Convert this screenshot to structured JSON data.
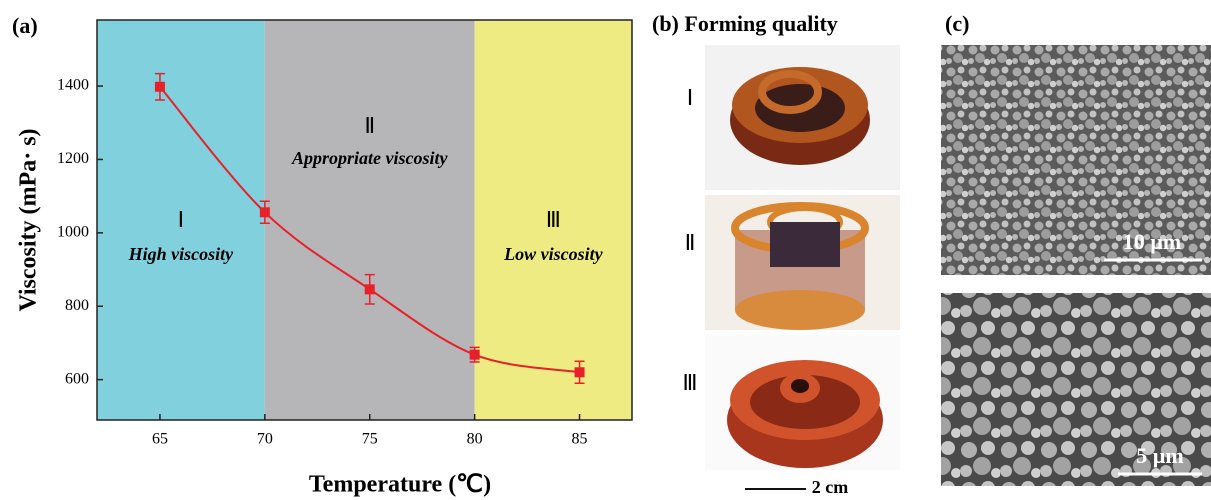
{
  "chart_data": {
    "type": "line",
    "panel_label": "(a)",
    "xlabel": "Temperature (℃)",
    "ylabel": "Viscosity (mPa· s)",
    "x": [
      65,
      70,
      75,
      80,
      85
    ],
    "values": [
      1398,
      1056,
      846,
      668,
      620
    ],
    "errors": [
      36,
      30,
      40,
      20,
      30
    ],
    "color": "#e8202a",
    "xlim": [
      62,
      87.5
    ],
    "xticks": [
      65,
      70,
      75,
      80,
      85
    ],
    "ylim": [
      490,
      1580
    ],
    "yticks": [
      600,
      800,
      1000,
      1200,
      1400
    ],
    "regions": [
      {
        "range": [
          62,
          70
        ],
        "color": "#80d0de",
        "numeral": "Ⅰ",
        "label": "High viscosity"
      },
      {
        "range": [
          70,
          80
        ],
        "color": "#b6b6b9",
        "numeral": "Ⅱ",
        "label": "Appropriate viscosity"
      },
      {
        "range": [
          80,
          87.5
        ],
        "color": "#eeeb82",
        "numeral": "Ⅲ",
        "label": "Low viscosity"
      }
    ]
  },
  "panel_b": {
    "title": "(b) Forming quality",
    "rows": [
      "Ⅰ",
      "Ⅱ",
      "Ⅲ"
    ],
    "scale": "2 cm"
  },
  "panel_c": {
    "title": "(c)",
    "scales": [
      "10 µm",
      "5 µm"
    ]
  }
}
